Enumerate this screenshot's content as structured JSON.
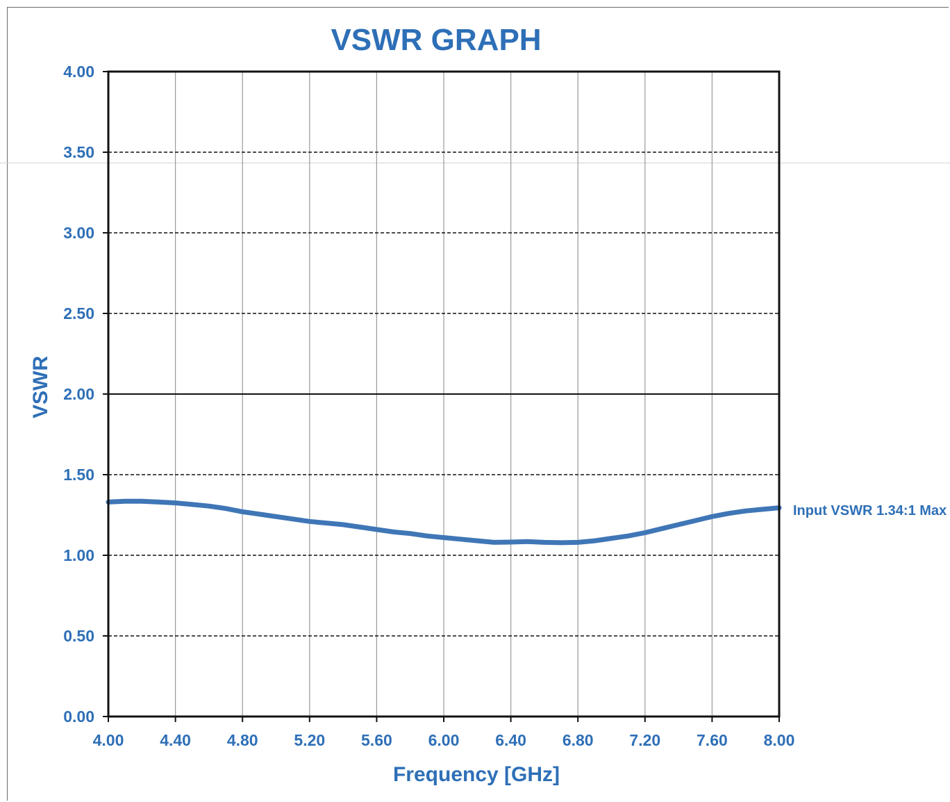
{
  "colors": {
    "accent": "#2e6fb7",
    "series": "#3f76b6",
    "gridline": "#9a9a9a",
    "axis": "#111111"
  },
  "chart_data": {
    "type": "line",
    "title": "VSWR GRAPH",
    "xlabel": "Frequency [GHz]",
    "ylabel": "VSWR",
    "xlim": [
      4.0,
      8.0
    ],
    "ylim": [
      0.0,
      4.0
    ],
    "x_ticks": [
      "4.00",
      "4.40",
      "4.80",
      "5.20",
      "5.60",
      "6.00",
      "6.40",
      "6.80",
      "7.20",
      "7.60",
      "8.00"
    ],
    "y_ticks": [
      "0.00",
      "0.50",
      "1.00",
      "1.50",
      "2.00",
      "2.50",
      "3.00",
      "3.50",
      "4.00"
    ],
    "grid": {
      "vertical": "solid",
      "horizontal": "dashed",
      "horizontal_solid_at": [
        2.0
      ]
    },
    "annotation": "Input VSWR 1.34:1 Max",
    "annotation_value": 1.34,
    "series": [
      {
        "x": [
          4.0,
          4.1,
          4.2,
          4.3,
          4.4,
          4.5,
          4.6,
          4.7,
          4.8,
          4.9,
          5.0,
          5.1,
          5.2,
          5.3,
          5.4,
          5.5,
          5.6,
          5.7,
          5.8,
          5.9,
          6.0,
          6.1,
          6.2,
          6.3,
          6.4,
          6.5,
          6.6,
          6.7,
          6.8,
          6.9,
          7.0,
          7.1,
          7.2,
          7.3,
          7.4,
          7.5,
          7.6,
          7.7,
          7.8,
          7.9,
          8.0
        ],
        "values": [
          1.33,
          1.335,
          1.335,
          1.33,
          1.325,
          1.315,
          1.305,
          1.29,
          1.27,
          1.255,
          1.24,
          1.225,
          1.21,
          1.2,
          1.19,
          1.175,
          1.16,
          1.145,
          1.135,
          1.12,
          1.11,
          1.1,
          1.09,
          1.08,
          1.082,
          1.085,
          1.08,
          1.078,
          1.08,
          1.09,
          1.105,
          1.12,
          1.14,
          1.165,
          1.19,
          1.215,
          1.24,
          1.26,
          1.275,
          1.285,
          1.295
        ]
      }
    ]
  }
}
